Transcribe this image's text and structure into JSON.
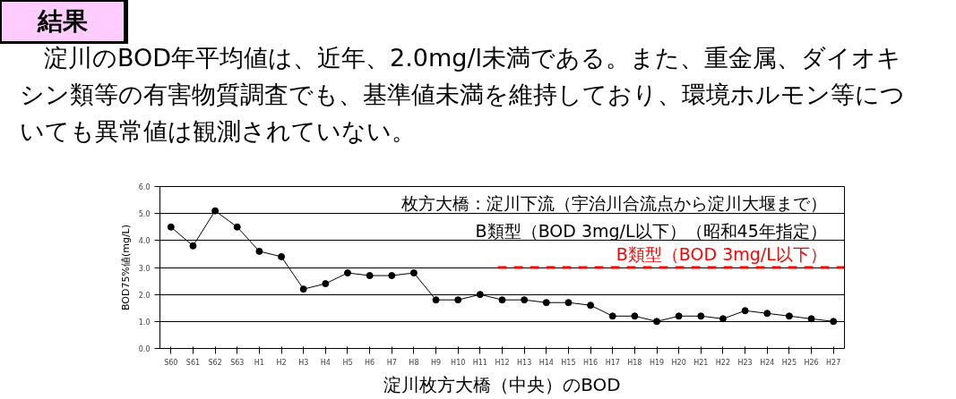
{
  "chart_data": {
    "type": "line",
    "title": "結果",
    "subtitle": "　淀川のBOD年平均値は、近年、2.0mg/l未満である。また、重金属、ダイオキシン類等の有害物質調査でも、基準値未満を維持しており、環境ホルモン等についても異常値は観測されていない。",
    "xlabel": "淀川枚方大橋（中央）のBOD",
    "ylabel": "BOD75%値(mg/L)",
    "categories": [
      "S60",
      "S61",
      "S62",
      "S63",
      "H1",
      "H2",
      "H3",
      "H4",
      "H5",
      "H6",
      "H7",
      "H8",
      "H9",
      "H10",
      "H11",
      "H12",
      "H13",
      "H14",
      "H15",
      "H16",
      "H17",
      "H18",
      "H19",
      "H20",
      "H21",
      "H22",
      "H23",
      "H24",
      "H25",
      "H26",
      "H27"
    ],
    "series": [
      {
        "color": "#000000",
        "values": [
          4.5,
          3.8,
          5.1,
          4.5,
          3.6,
          3.4,
          2.2,
          2.4,
          2.8,
          2.7,
          2.7,
          2.8,
          1.8,
          1.8,
          2.0,
          1.8,
          1.8,
          1.7,
          1.7,
          1.6,
          1.2,
          1.2,
          1.0,
          1.2,
          1.2,
          1.1,
          1.4,
          1.3,
          1.2,
          1.1,
          1.0
        ]
      }
    ],
    "ylim": [
      0,
      6
    ],
    "yticks": [
      {
        "value": 0,
        "label": "0.0"
      },
      {
        "value": 1,
        "label": "1.0"
      },
      {
        "value": 2,
        "label": "2.0"
      },
      {
        "value": 3,
        "label": "3.0"
      },
      {
        "value": 4,
        "label": "4.0"
      },
      {
        "value": 5,
        "label": "5.0"
      },
      {
        "value": 6,
        "label": "6.0"
      }
    ],
    "grid": "y",
    "marker": "circle",
    "line_style": "solid",
    "ref_lines": [
      {
        "axis": "y",
        "value": 3,
        "label": "B類型（BOD 3mg/L以下）",
        "color": "#ff0000",
        "line_style": "dashed"
      }
    ],
    "annotations": [
      "枚方大橋：淀川下流（宇治川合流点から淀川大堰まで）",
      "B類型（BOD 3mg/L以下）（昭和45年指定）"
    ]
  }
}
